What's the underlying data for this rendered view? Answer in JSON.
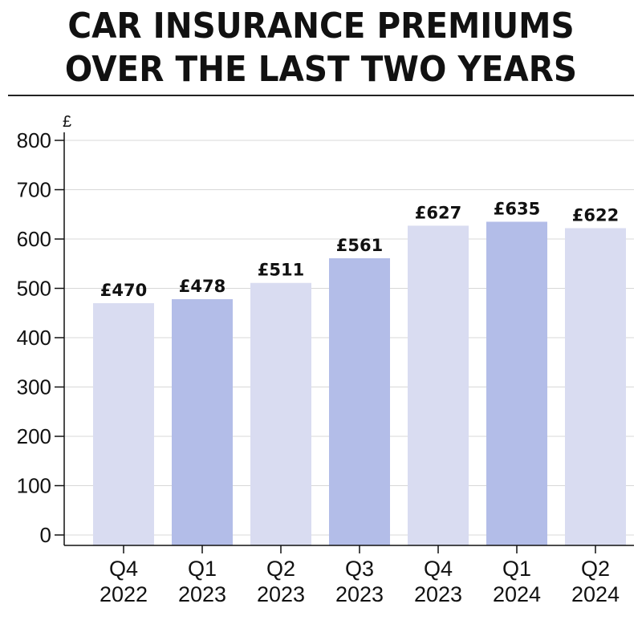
{
  "title_lines": [
    "CAR INSURANCE PREMIUMS",
    "OVER THE LAST TWO YEARS"
  ],
  "chart_data": {
    "type": "bar",
    "title": "CAR INSURANCE PREMIUMS OVER THE LAST TWO YEARS",
    "unit_label": "£",
    "ylim": [
      0,
      800
    ],
    "yticks": [
      0,
      100,
      200,
      300,
      400,
      500,
      600,
      700,
      800
    ],
    "grid": true,
    "categories": [
      [
        "Q4",
        "2022"
      ],
      [
        "Q1",
        "2023"
      ],
      [
        "Q2",
        "2023"
      ],
      [
        "Q3",
        "2023"
      ],
      [
        "Q4",
        "2023"
      ],
      [
        "Q1",
        "2024"
      ],
      [
        "Q2",
        "2024"
      ]
    ],
    "values": [
      470,
      478,
      511,
      561,
      627,
      635,
      622
    ],
    "data_labels": [
      "£470",
      "£478",
      "£511",
      "£561",
      "£627",
      "£635",
      "£622"
    ],
    "colors": {
      "light_bar": "#d9dcf1",
      "dark_bar": "#b3bde8",
      "grid": "#d8d8d8",
      "axis": "#111111"
    },
    "bar_color_pattern": [
      "light",
      "dark",
      "light",
      "dark",
      "light",
      "dark",
      "light"
    ]
  }
}
